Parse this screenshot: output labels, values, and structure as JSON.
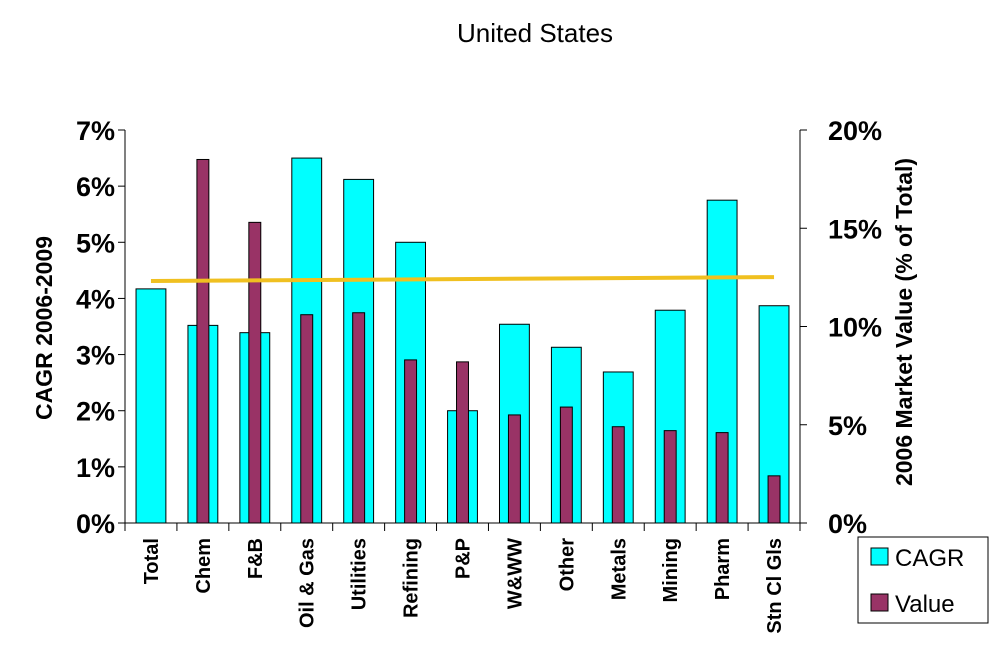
{
  "chart_data": {
    "type": "bar",
    "title": "United States",
    "ylabel_left": "CAGR 2006-2009",
    "ylabel_right": "2006 Market Value (% of Total)",
    "categories": [
      "Total",
      "Chem",
      "F&B",
      "Oil & Gas",
      "Utilities",
      "Refining",
      "P&P",
      "W&WW",
      "Other",
      "Metals",
      "Mining",
      "Pharm",
      "Stn Cl Gls"
    ],
    "left_axis": {
      "min": 0,
      "max": 0.07,
      "step": 0.01,
      "ticks": [
        "0%",
        "1%",
        "2%",
        "3%",
        "4%",
        "5%",
        "6%",
        "7%"
      ]
    },
    "right_axis": {
      "min": 0,
      "max": 0.2,
      "step": 0.05,
      "ticks": [
        "0%",
        "5%",
        "10%",
        "15%",
        "20%"
      ]
    },
    "series": [
      {
        "name": "CAGR",
        "axis": "left",
        "color": "#00FFFF",
        "values": [
          0.0417,
          0.0352,
          0.0339,
          0.065,
          0.0612,
          0.05,
          0.02,
          0.0354,
          0.0313,
          0.0269,
          0.0379,
          0.0575,
          0.0387
        ]
      },
      {
        "name": "Value",
        "axis": "right",
        "color": "#993366",
        "values": [
          null,
          0.185,
          0.153,
          0.106,
          0.107,
          0.083,
          0.082,
          0.055,
          0.059,
          0.049,
          0.047,
          0.046,
          0.024
        ]
      }
    ],
    "trend_line": {
      "color": "#F0C020",
      "start": 0.0431,
      "end": 0.0438
    },
    "legend": {
      "position": "bottom-right",
      "entries": [
        "CAGR",
        "Value"
      ]
    },
    "grid": false
  }
}
